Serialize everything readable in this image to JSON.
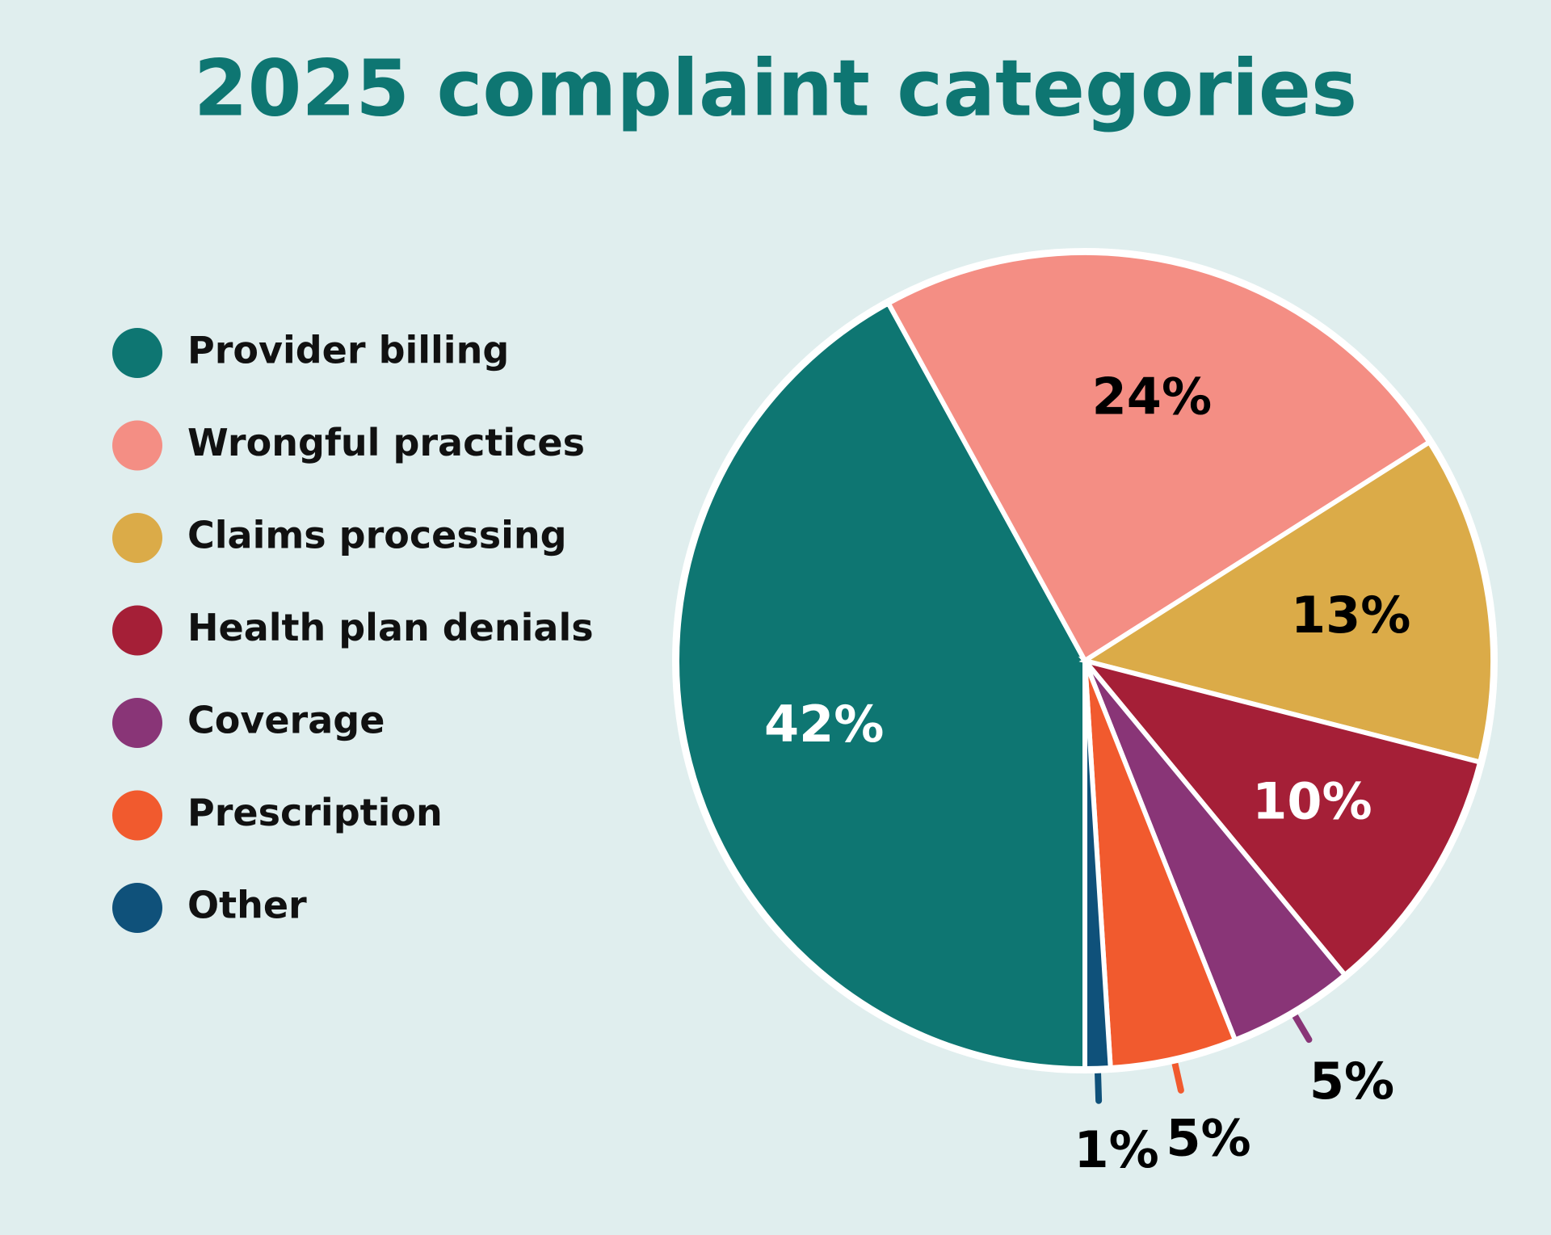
{
  "chart_data": {
    "type": "pie",
    "title": "2025 complaint categories",
    "categories": [
      "Provider billing",
      "Wrongful practices",
      "Claims processing",
      "Health plan denials",
      "Coverage",
      "Prescription",
      "Other"
    ],
    "values": [
      42,
      24,
      13,
      10,
      5,
      5,
      1
    ],
    "value_labels": [
      "42%",
      "24%",
      "13%",
      "10%",
      "5%",
      "5%",
      "1%"
    ],
    "colors": [
      "#0e7672",
      "#f48e84",
      "#dbab48",
      "#a51f37",
      "#893577",
      "#f15a2e",
      "#0f517a"
    ]
  }
}
